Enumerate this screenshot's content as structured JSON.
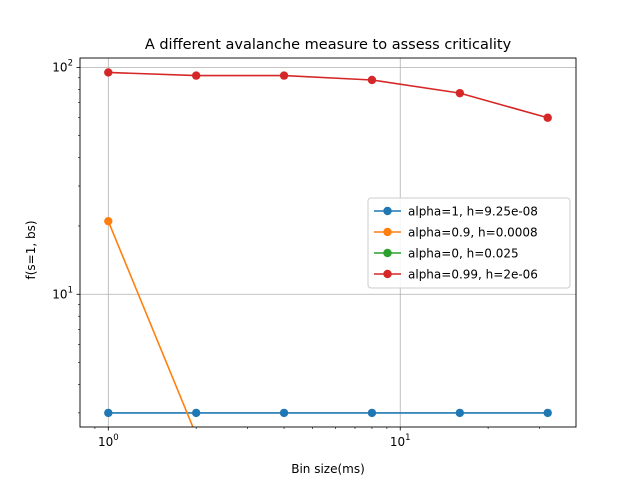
{
  "chart_data": {
    "type": "line",
    "title": "A different avalanche measure to assess criticality",
    "xlabel": "Bin size(ms)",
    "ylabel": "f(s=1, bs)",
    "xscale": "log",
    "yscale": "log",
    "xlim": [
      0.8,
      40
    ],
    "ylim": [
      2.6,
      110
    ],
    "x_major_ticks": [
      1,
      10
    ],
    "x_tick_labels": [
      "10^0",
      "10^1"
    ],
    "y_major_ticks": [
      10,
      100
    ],
    "y_tick_labels": [
      "10^1",
      "10^2"
    ],
    "grid": true,
    "legend_position": "center-right",
    "series": [
      {
        "name": "alpha=1, h=9.25e-08",
        "color": "#1f77b4",
        "x": [
          1,
          2,
          4,
          8,
          16,
          32
        ],
        "y": [
          3,
          3,
          3,
          3,
          3,
          3
        ]
      },
      {
        "name": "alpha=0.9, h=0.0008",
        "color": "#ff7f0e",
        "x": [
          1,
          2,
          4,
          8,
          16,
          32
        ],
        "y": [
          21,
          0,
          0,
          0,
          0,
          0
        ]
      },
      {
        "name": "alpha=0, h=0.025",
        "color": "#2ca02c",
        "x": [
          1,
          2,
          4,
          8,
          16,
          32
        ],
        "y": [
          0,
          0,
          0,
          0,
          0,
          0
        ]
      },
      {
        "name": "alpha=0.99, h=2e-06",
        "color": "#d62728",
        "x": [
          1,
          2,
          4,
          8,
          16,
          32
        ],
        "y": [
          95,
          92,
          92,
          88,
          77,
          60
        ]
      }
    ]
  }
}
